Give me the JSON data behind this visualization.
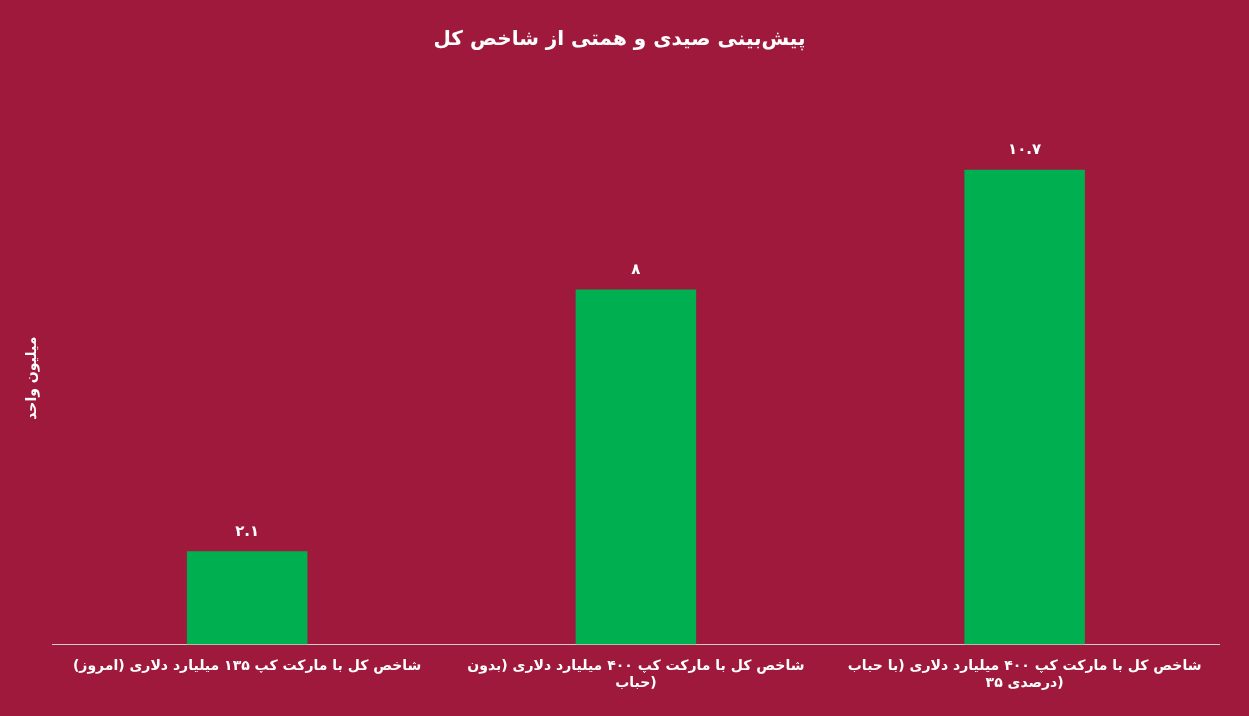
{
  "chart_data": {
    "type": "bar",
    "title": "پیش‌بینی صیدی و همتی از شاخص کل",
    "ylabel": "میلیون واحد",
    "categories": [
      "شاخص کل با مارکت کپ ۱۳۵ میلیارد دلاری (امروز)",
      "شاخص کل با مارکت کپ ۴۰۰ میلیارد دلاری (بدون حباب)",
      "شاخص کل با مارکت کپ ۴۰۰ میلیارد دلاری (با حباب ۳۵ درصدی)"
    ],
    "values": [
      2.1,
      8,
      10.7
    ],
    "value_labels": [
      "۲.۱",
      "۸",
      "۱۰.۷"
    ],
    "color": "#00b050",
    "grid": false,
    "legend": false,
    "tick_labels": "x"
  }
}
